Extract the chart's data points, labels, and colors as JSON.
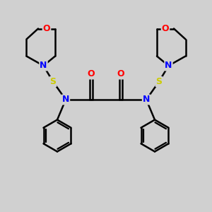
{
  "bg_color": "#d0d0d0",
  "bond_color": "#000000",
  "atom_colors": {
    "O": "#ff0000",
    "N": "#0000ff",
    "S": "#cccc00"
  },
  "line_width": 1.8,
  "figsize": [
    3.0,
    3.0
  ],
  "dpi": 100,
  "xlim": [
    0,
    10
  ],
  "ylim": [
    0,
    10
  ]
}
